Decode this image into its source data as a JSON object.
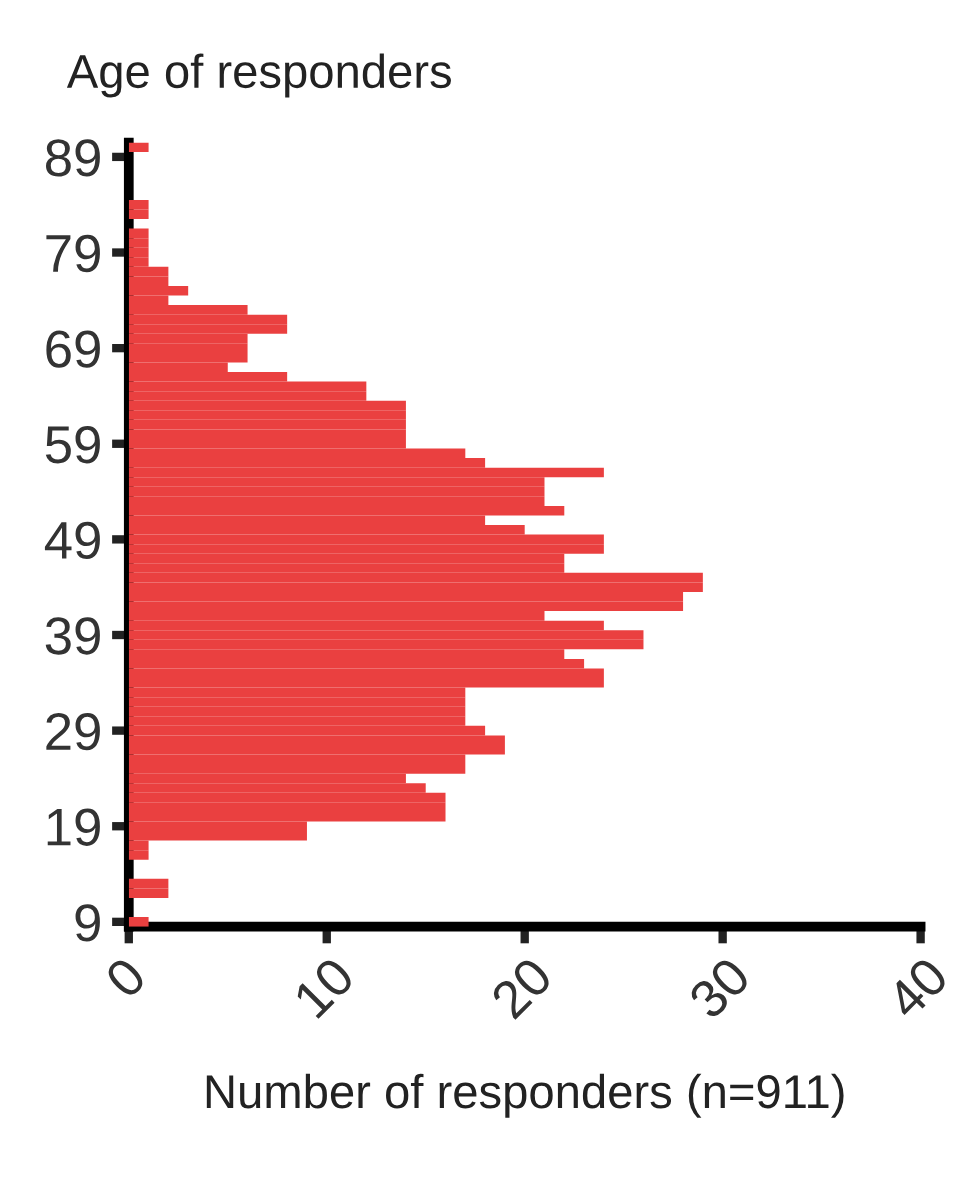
{
  "chart_data": {
    "type": "histogram",
    "orientation": "horizontal",
    "title": "Age of responders",
    "xlabel": "Number of responders (n=911)",
    "bins": [
      8.5,
      9.5,
      10.5,
      11.5,
      12.5,
      13.5,
      14.5,
      15.5,
      16.5,
      17.5,
      18.5,
      19.5,
      20.5,
      21.5,
      22.5,
      23.5,
      24.5,
      25.5,
      26.5,
      27.5,
      28.5,
      29.5,
      30.5,
      31.5,
      32.5,
      33.5,
      34.5,
      35.5,
      36.5,
      37.5,
      38.5,
      39.5,
      40.5,
      41.5,
      42.5,
      43.5,
      44.5,
      45.5,
      46.5,
      47.5,
      48.5,
      49.5,
      50.5,
      51.5,
      52.5,
      53.5,
      54.5,
      55.5,
      56.5,
      57.5,
      58.5,
      59.5,
      60.5,
      61.5,
      62.5,
      63.5,
      64.5,
      65.5,
      66.5,
      67.5,
      68.5,
      69.5,
      70.5,
      71.5,
      72.5,
      73.5,
      74.5,
      75.5,
      76.5,
      77.5,
      78.5,
      79.5,
      80.5,
      81.5,
      82.5,
      83.5,
      84.5,
      85.5,
      86.5,
      87.5,
      88.5,
      89.5,
      90.5
    ],
    "values": [
      1,
      0,
      0,
      2,
      2,
      0,
      0,
      1,
      1,
      9,
      9,
      16,
      16,
      16,
      15,
      14,
      17,
      17,
      19,
      19,
      18,
      17,
      17,
      17,
      17,
      24,
      24,
      23,
      22,
      26,
      26,
      24,
      21,
      28,
      28,
      29,
      29,
      22,
      22,
      24,
      24,
      20,
      18,
      22,
      21,
      21,
      21,
      24,
      18,
      17,
      14,
      14,
      14,
      14,
      14,
      12,
      12,
      8,
      5,
      6,
      6,
      6,
      8,
      8,
      6,
      2,
      3,
      2,
      2,
      1,
      1,
      1,
      1,
      0,
      1,
      1,
      0,
      0,
      0,
      0,
      0,
      1
    ],
    "color": "#ea4040",
    "xlim": [
      0,
      40
    ],
    "xticks": [
      0,
      10,
      20,
      30,
      40
    ],
    "ylim": [
      8.5,
      90.5
    ],
    "yticks": [
      9,
      19,
      29,
      39,
      49,
      59,
      69,
      79,
      89
    ],
    "grid": false
  }
}
